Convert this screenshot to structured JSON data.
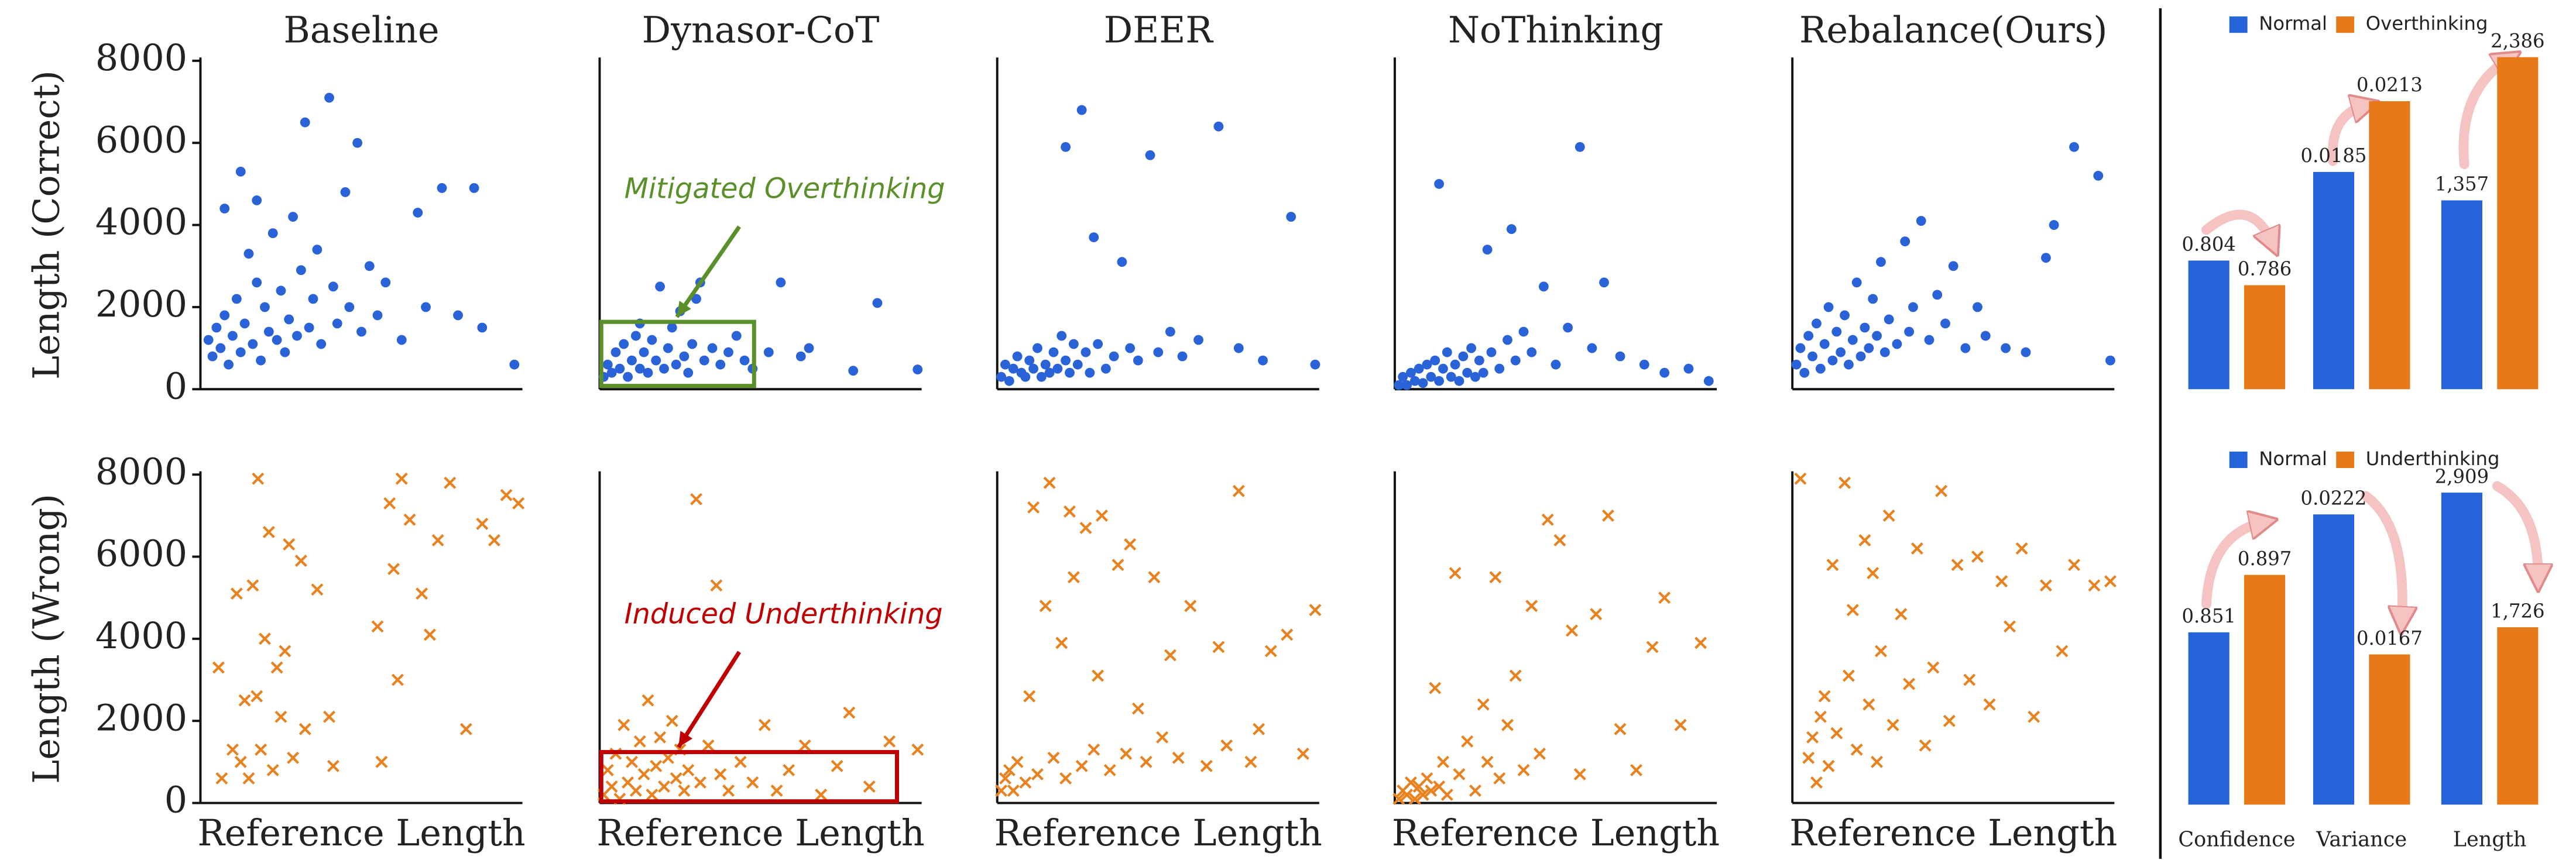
{
  "chart_data": [
    {
      "type": "scatter",
      "title": "Baseline",
      "ylabel": "Length (Correct)",
      "marker": "o",
      "color": "#2a62d8",
      "xlim": [
        0,
        8000
      ],
      "ylim": [
        0,
        8000
      ],
      "yticks": [
        0,
        2000,
        4000,
        6000,
        8000
      ],
      "x": [
        200,
        300,
        400,
        500,
        600,
        700,
        800,
        900,
        1000,
        1100,
        1200,
        1300,
        1400,
        1500,
        1600,
        1700,
        1800,
        1900,
        2000,
        2100,
        2200,
        2300,
        2400,
        2500,
        2600,
        2700,
        2800,
        2900,
        3000,
        3200,
        3300,
        3400,
        3600,
        3700,
        3900,
        4000,
        4200,
        4400,
        4600,
        5000,
        5400,
        5600,
        6000,
        6400,
        6800,
        7000,
        7800,
        1000,
        600,
        1400
      ],
      "values": [
        1200,
        800,
        1500,
        1000,
        1800,
        600,
        1300,
        2200,
        900,
        1600,
        3300,
        1100,
        2600,
        700,
        2000,
        1400,
        3800,
        1200,
        2400,
        900,
        1700,
        4200,
        1300,
        2900,
        6500,
        1500,
        2200,
        3400,
        1100,
        7100,
        2500,
        1600,
        4800,
        2000,
        6000,
        1400,
        3000,
        1800,
        2600,
        1200,
        4300,
        2000,
        4900,
        1800,
        4900,
        1500,
        600,
        5300,
        4400,
        4600
      ]
    },
    {
      "type": "scatter",
      "title": "Dynasor-CoT",
      "marker": "o",
      "color": "#2a62d8",
      "xlim": [
        0,
        8000
      ],
      "ylim": [
        0,
        8000
      ],
      "annotation": "Mitigated Overthinking",
      "annotation_color": "#5a8f29",
      "x": [
        100,
        200,
        300,
        400,
        500,
        600,
        700,
        800,
        900,
        1000,
        1100,
        1200,
        1300,
        1400,
        1500,
        1600,
        1700,
        1800,
        1900,
        2000,
        2100,
        2200,
        2300,
        2400,
        2600,
        2800,
        3000,
        3200,
        3400,
        3600,
        3800,
        4200,
        4500,
        5000,
        5200,
        6300,
        6900,
        7900,
        2500,
        1000
      ],
      "values": [
        300,
        600,
        400,
        900,
        500,
        1100,
        300,
        700,
        1300,
        500,
        900,
        400,
        1200,
        700,
        2500,
        500,
        1000,
        1500,
        600,
        1900,
        800,
        400,
        1100,
        2200,
        700,
        1000,
        600,
        900,
        1300,
        700,
        500,
        900,
        2600,
        800,
        1000,
        450,
        2100,
        480,
        2600,
        1600
      ]
    },
    {
      "type": "scatter",
      "title": "DEER",
      "marker": "o",
      "color": "#2a62d8",
      "xlim": [
        0,
        8000
      ],
      "ylim": [
        0,
        8000
      ],
      "x": [
        100,
        200,
        300,
        400,
        500,
        600,
        700,
        800,
        900,
        1000,
        1100,
        1200,
        1300,
        1400,
        1500,
        1600,
        1700,
        1800,
        1900,
        2000,
        2100,
        2200,
        2300,
        2400,
        2500,
        2700,
        2900,
        3100,
        3300,
        3500,
        3800,
        4000,
        4300,
        4600,
        5000,
        5500,
        6000,
        6600,
        7300,
        7900,
        1700
      ],
      "values": [
        300,
        600,
        200,
        500,
        800,
        400,
        300,
        700,
        500,
        1000,
        300,
        600,
        400,
        900,
        500,
        1300,
        700,
        400,
        1100,
        600,
        6800,
        900,
        400,
        3700,
        1100,
        500,
        800,
        3100,
        1000,
        700,
        5700,
        900,
        1400,
        800,
        1200,
        6400,
        1000,
        700,
        4200,
        600,
        5900
      ]
    },
    {
      "type": "scatter",
      "title": "NoThinking",
      "marker": "o",
      "color": "#2a62d8",
      "xlim": [
        0,
        8000
      ],
      "ylim": [
        0,
        8000
      ],
      "x": [
        100,
        200,
        300,
        400,
        500,
        600,
        700,
        800,
        900,
        1000,
        1100,
        1200,
        1300,
        1400,
        1500,
        1600,
        1700,
        1800,
        1900,
        2000,
        2100,
        2200,
        2300,
        2400,
        2600,
        2800,
        3000,
        3200,
        3400,
        3700,
        4000,
        4300,
        4600,
        4900,
        5200,
        5600,
        6200,
        6700,
        7300,
        7800,
        1100,
        2900
      ],
      "values": [
        100,
        300,
        100,
        400,
        200,
        500,
        150,
        600,
        300,
        700,
        200,
        500,
        900,
        300,
        600,
        200,
        800,
        400,
        1000,
        300,
        700,
        400,
        3400,
        900,
        500,
        1200,
        700,
        1400,
        900,
        2500,
        600,
        1500,
        5900,
        1000,
        2600,
        800,
        600,
        400,
        500,
        200,
        5000,
        3900
      ]
    },
    {
      "type": "scatter",
      "title": "Rebalance(Ours)",
      "marker": "o",
      "color": "#2a62d8",
      "xlim": [
        0,
        8000
      ],
      "ylim": [
        0,
        8000
      ],
      "x": [
        100,
        200,
        300,
        400,
        500,
        600,
        700,
        800,
        900,
        1000,
        1100,
        1200,
        1300,
        1400,
        1500,
        1600,
        1700,
        1800,
        1900,
        2000,
        2100,
        2200,
        2300,
        2400,
        2600,
        2800,
        2900,
        3000,
        3200,
        3400,
        3600,
        3800,
        4000,
        4300,
        4600,
        4800,
        5300,
        5800,
        6300,
        6500,
        7000,
        7600,
        7900
      ],
      "values": [
        600,
        1000,
        400,
        1300,
        800,
        1600,
        500,
        1100,
        2000,
        700,
        1400,
        900,
        1800,
        600,
        1200,
        2600,
        800,
        1500,
        1000,
        2200,
        1300,
        3100,
        900,
        1700,
        1100,
        3600,
        1400,
        2000,
        4100,
        1200,
        2300,
        1600,
        3000,
        1000,
        2000,
        1300,
        1000,
        900,
        3200,
        4000,
        5900,
        5200,
        700
      ]
    },
    {
      "type": "scatter",
      "ylabel": "Length (Wrong)",
      "xlabel": "Reference Length",
      "marker": "x",
      "color": "#e8811e",
      "xlim": [
        0,
        8000
      ],
      "ylim": [
        0,
        8000
      ],
      "yticks": [
        0,
        2000,
        4000,
        6000,
        8000
      ],
      "x": [
        450,
        530,
        800,
        900,
        1000,
        1100,
        1200,
        1300,
        1400,
        1430,
        1500,
        1600,
        1700,
        1800,
        1900,
        2000,
        2100,
        2200,
        2300,
        2500,
        2600,
        2900,
        3200,
        3300,
        4400,
        4500,
        4700,
        4800,
        4900,
        5000,
        5200,
        5500,
        5700,
        5900,
        6200,
        6600,
        7000,
        7300,
        7600,
        7900
      ],
      "values": [
        3300,
        600,
        1300,
        5100,
        1000,
        2500,
        600,
        5300,
        2600,
        7900,
        1300,
        4000,
        6600,
        800,
        3300,
        2100,
        3700,
        6300,
        1100,
        5900,
        1800,
        5200,
        2100,
        900,
        4300,
        1000,
        7300,
        5700,
        3000,
        7900,
        6900,
        5100,
        4100,
        6400,
        7800,
        1800,
        6800,
        6400,
        7500,
        7300
      ]
    },
    {
      "type": "scatter",
      "xlabel": "Reference Length",
      "marker": "x",
      "color": "#e8811e",
      "xlim": [
        0,
        8000
      ],
      "ylim": [
        0,
        8000
      ],
      "annotation": "Induced Underthinking",
      "annotation_color": "#c00000",
      "x": [
        100,
        200,
        300,
        400,
        500,
        600,
        700,
        800,
        900,
        1000,
        1100,
        1200,
        1300,
        1400,
        1500,
        1600,
        1700,
        1800,
        1900,
        2000,
        2100,
        2200,
        2400,
        2500,
        2700,
        2900,
        3000,
        3200,
        3500,
        3800,
        4100,
        4400,
        4700,
        5100,
        5500,
        5900,
        6200,
        6700,
        7200,
        7900
      ],
      "values": [
        200,
        800,
        400,
        1200,
        100,
        1900,
        500,
        1000,
        300,
        1500,
        700,
        2500,
        200,
        900,
        1600,
        400,
        1100,
        2000,
        600,
        1300,
        300,
        800,
        7400,
        500,
        1400,
        5300,
        700,
        300,
        1000,
        500,
        1900,
        300,
        800,
        1400,
        200,
        900,
        2200,
        400,
        1500,
        1300
      ]
    },
    {
      "type": "scatter",
      "xlabel": "Reference Length",
      "marker": "x",
      "color": "#e8811e",
      "xlim": [
        0,
        8000
      ],
      "ylim": [
        0,
        8000
      ],
      "x": [
        100,
        200,
        300,
        400,
        500,
        700,
        800,
        900,
        1000,
        1200,
        1300,
        1400,
        1600,
        1700,
        1800,
        1900,
        2100,
        2200,
        2400,
        2500,
        2600,
        2800,
        3000,
        3200,
        3300,
        3500,
        3700,
        3900,
        4100,
        4300,
        4500,
        4800,
        5200,
        5500,
        5700,
        6000,
        6300,
        6500,
        6800,
        7200,
        7600,
        7900
      ],
      "values": [
        300,
        600,
        800,
        300,
        1000,
        500,
        2600,
        7200,
        700,
        4800,
        7800,
        1100,
        3900,
        600,
        7100,
        5500,
        900,
        6700,
        1300,
        3100,
        7000,
        800,
        5800,
        1200,
        6300,
        2300,
        1000,
        5500,
        1600,
        3600,
        1100,
        4800,
        900,
        3800,
        1400,
        7600,
        1000,
        1800,
        3700,
        4100,
        1200,
        4700
      ]
    },
    {
      "type": "scatter",
      "xlabel": "Reference Length",
      "marker": "x",
      "color": "#e8811e",
      "xlim": [
        0,
        8000
      ],
      "ylim": [
        0,
        8000
      ],
      "x": [
        100,
        200,
        300,
        400,
        500,
        600,
        700,
        800,
        900,
        1000,
        1100,
        1200,
        1300,
        1500,
        1600,
        1800,
        2000,
        2200,
        2300,
        2500,
        2600,
        2800,
        3000,
        3200,
        3400,
        3600,
        3800,
        4100,
        4400,
        4600,
        5000,
        5300,
        5600,
        6000,
        6400,
        6700,
        7100,
        7600
      ],
      "values": [
        100,
        300,
        200,
        500,
        100,
        400,
        200,
        600,
        300,
        2800,
        400,
        1000,
        200,
        5600,
        700,
        1500,
        300,
        2400,
        1000,
        5500,
        600,
        1900,
        3100,
        800,
        4800,
        1200,
        6900,
        6400,
        4200,
        700,
        4600,
        7000,
        1800,
        800,
        3800,
        5000,
        1900,
        3900
      ]
    },
    {
      "type": "scatter",
      "xlabel": "Reference Length",
      "marker": "x",
      "color": "#e8811e",
      "xlim": [
        0,
        8000
      ],
      "ylim": [
        0,
        8000
      ],
      "x": [
        200,
        400,
        500,
        600,
        700,
        800,
        900,
        1000,
        1100,
        1300,
        1400,
        1500,
        1600,
        1800,
        1900,
        2000,
        2100,
        2200,
        2400,
        2500,
        2700,
        2900,
        3100,
        3300,
        3500,
        3700,
        3900,
        4100,
        4400,
        4600,
        4900,
        5200,
        5400,
        5700,
        6000,
        6300,
        6700,
        7000,
        7500,
        7900
      ],
      "values": [
        7900,
        1100,
        1600,
        500,
        2100,
        2600,
        900,
        5800,
        1700,
        7800,
        3100,
        4700,
        1300,
        6400,
        2400,
        5600,
        1000,
        3700,
        7000,
        1900,
        4600,
        2900,
        6200,
        1400,
        3300,
        7600,
        2000,
        5800,
        3000,
        6000,
        2400,
        5400,
        4300,
        6200,
        2100,
        5300,
        3700,
        5800,
        5300,
        5400
      ]
    },
    {
      "type": "bar",
      "categories": [
        null,
        null,
        null
      ],
      "group_ylims": [
        [
          0.71,
          0.95
        ],
        [
          0.0099,
          0.0229
        ],
        [
          0,
          2360
        ]
      ],
      "series": [
        {
          "name": "Normal",
          "color": "#2563d9",
          "values": [
            0.804,
            0.0185,
            1357
          ],
          "value_labels": [
            "0.804",
            "0.0185",
            "1,357"
          ]
        },
        {
          "name": "Overthinking",
          "color": "#e67a18",
          "values": [
            0.786,
            0.0213,
            2386
          ],
          "value_labels": [
            "0.786",
            "0.0213",
            "2,386"
          ]
        }
      ]
    },
    {
      "type": "bar",
      "categories": [
        "Confidence",
        "Variance",
        "Length"
      ],
      "group_ylims": [
        [
          0.713,
          0.976
        ],
        [
          0.0108,
          0.0237
        ],
        [
          167,
          3053
        ]
      ],
      "series": [
        {
          "name": "Normal",
          "color": "#2563d9",
          "values": [
            0.851,
            0.0222,
            2909
          ],
          "value_labels": [
            "0.851",
            "0.0222",
            "2,909"
          ]
        },
        {
          "name": "Underthinking",
          "color": "#e67a18",
          "values": [
            0.897,
            0.0167,
            1726
          ],
          "value_labels": [
            "0.897",
            "0.0167",
            "1,726"
          ]
        }
      ]
    }
  ]
}
